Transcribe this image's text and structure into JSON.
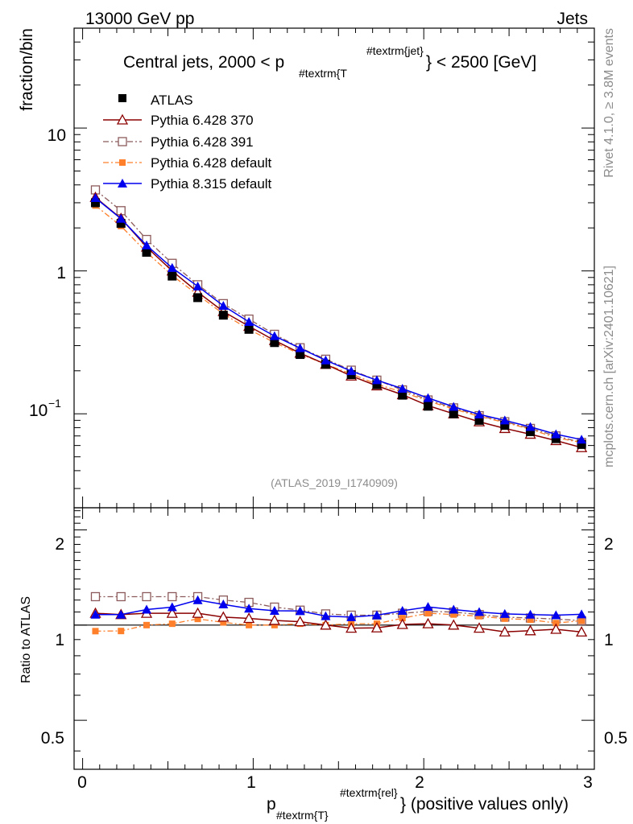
{
  "header": {
    "left": "13000 GeV pp",
    "right": "Jets"
  },
  "title": {
    "main": "Central jets, 2000 < p",
    "sub": "#textrm{T",
    "sup": "#textrm{jet}",
    "tail": "} < 2500 [GeV]"
  },
  "side_labels": {
    "rivet": "Rivet 4.1.0, ≥ 3.8M events",
    "mcplots": "mcplots.cern.ch [arXiv:2401.10621]"
  },
  "watermark": "(ATLAS_2019_I1740909)",
  "xaxis": {
    "main": "p",
    "sub": "#textrm{T}",
    "sup": "#textrm{rel}",
    "tail": "} (positive values only)"
  },
  "legend": {
    "atlas": "ATLAS",
    "p370": "Pythia 6.428 370",
    "p391": "Pythia 6.428 391",
    "p6def": "Pythia 6.428 default",
    "p8def": "Pythia 8.315 default"
  },
  "main_ticks": {
    "y10": "10",
    "y1": "1",
    "y01_base": "10",
    "y01_exp": "−1"
  },
  "ratio_ticks": {
    "y2": "2",
    "y1": "1",
    "y05": "0.5",
    "r2": "2",
    "r1": "1",
    "r05": "0.5"
  },
  "x_ticks": {
    "t0": "0",
    "t1": "1",
    "t2": "2",
    "t3": "3"
  },
  "chart_data": {
    "type": "line",
    "title": "Central jets, 2000 < pT jet < 2500 [GeV]",
    "xlabel": "pT rel (positive values only)",
    "ylabel": "fraction/bin",
    "ratio_ylabel": "Ratio to ATLAS",
    "yscale": "log",
    "xlim": [
      -0.05,
      3.0
    ],
    "ylim": [
      0.022,
      50
    ],
    "ratio_ylim": [
      0.35,
      2.35
    ],
    "x": [
      0.075,
      0.225,
      0.375,
      0.525,
      0.675,
      0.825,
      0.975,
      1.125,
      1.275,
      1.425,
      1.575,
      1.725,
      1.875,
      2.025,
      2.175,
      2.325,
      2.475,
      2.625,
      2.775,
      2.925
    ],
    "series": [
      {
        "name": "ATLAS",
        "color": "#000000",
        "values": [
          3.0,
          2.15,
          1.35,
          0.92,
          0.65,
          0.49,
          0.39,
          0.315,
          0.26,
          0.222,
          0.188,
          0.16,
          0.135,
          0.113,
          0.1,
          0.09,
          0.083,
          0.075,
          0.067,
          0.061
        ]
      },
      {
        "name": "Pythia 6.428 370",
        "color": "#8b0000",
        "values": [
          3.27,
          2.33,
          1.47,
          1.0,
          0.71,
          0.52,
          0.41,
          0.326,
          0.266,
          0.222,
          0.184,
          0.157,
          0.136,
          0.114,
          0.1,
          0.088,
          0.079,
          0.072,
          0.065,
          0.058
        ]
      },
      {
        "name": "Pythia 6.428 391",
        "color": "#8c5a5a",
        "values": [
          3.69,
          2.64,
          1.66,
          1.13,
          0.8,
          0.59,
          0.46,
          0.36,
          0.29,
          0.241,
          0.202,
          0.172,
          0.147,
          0.125,
          0.11,
          0.097,
          0.088,
          0.079,
          0.07,
          0.063
        ]
      },
      {
        "name": "Pythia 6.428 default",
        "color": "#ff7f2a",
        "values": [
          2.87,
          2.06,
          1.35,
          0.93,
          0.68,
          0.5,
          0.39,
          0.315,
          0.262,
          0.222,
          0.19,
          0.161,
          0.142,
          0.123,
          0.108,
          0.096,
          0.087,
          0.078,
          0.068,
          0.063
        ]
      },
      {
        "name": "Pythia 8.315 default",
        "color": "#0000ee",
        "values": [
          3.24,
          2.32,
          1.51,
          1.05,
          0.78,
          0.57,
          0.44,
          0.35,
          0.288,
          0.237,
          0.199,
          0.172,
          0.15,
          0.129,
          0.112,
          0.099,
          0.09,
          0.081,
          0.072,
          0.066
        ]
      }
    ],
    "ratios": [
      {
        "name": "Pythia 6.428 370",
        "values": [
          1.09,
          1.08,
          1.09,
          1.09,
          1.09,
          1.06,
          1.05,
          1.035,
          1.025,
          1.0,
          0.978,
          0.98,
          1.005,
          1.01,
          1.0,
          0.978,
          0.952,
          0.96,
          0.97,
          0.951
        ]
      },
      {
        "name": "Pythia 6.428 391",
        "values": [
          1.23,
          1.23,
          1.23,
          1.23,
          1.23,
          1.2,
          1.18,
          1.14,
          1.115,
          1.085,
          1.075,
          1.075,
          1.09,
          1.105,
          1.1,
          1.08,
          1.06,
          1.053,
          1.045,
          1.033
        ]
      },
      {
        "name": "Pythia 6.428 default",
        "values": [
          0.957,
          0.958,
          1.0,
          1.01,
          1.046,
          1.02,
          1.0,
          1.0,
          1.01,
          1.0,
          1.01,
          1.01,
          1.052,
          1.09,
          1.08,
          1.067,
          1.048,
          1.04,
          1.015,
          1.033
        ]
      },
      {
        "name": "Pythia 8.315 default",
        "values": [
          1.08,
          1.08,
          1.12,
          1.14,
          1.2,
          1.163,
          1.128,
          1.11,
          1.108,
          1.068,
          1.06,
          1.075,
          1.11,
          1.142,
          1.12,
          1.1,
          1.085,
          1.08,
          1.075,
          1.082
        ]
      }
    ]
  }
}
